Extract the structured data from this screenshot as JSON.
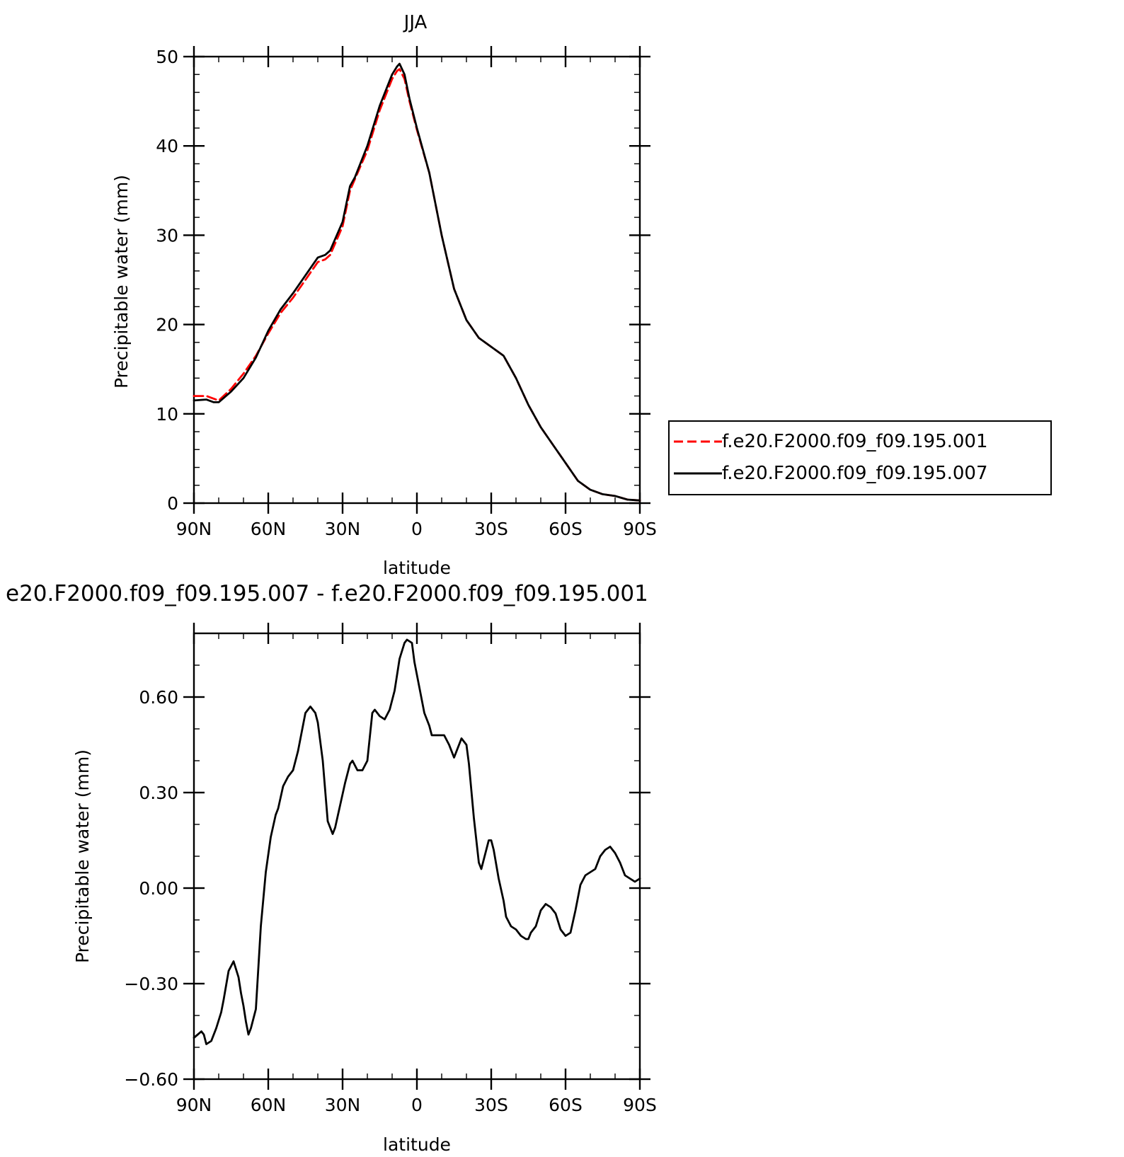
{
  "chart_data": [
    {
      "type": "line",
      "title": "JJA",
      "xlabel": "latitude",
      "ylabel": "Precipitable water (mm)",
      "xlim": [
        90,
        -90
      ],
      "ylim": [
        0,
        50
      ],
      "yticks": [
        0,
        10,
        20,
        30,
        40,
        50
      ],
      "x_tick_labels": [
        "90N",
        "60N",
        "30N",
        "0",
        "30S",
        "60S",
        "90S"
      ],
      "y_tick_labels": [
        "0",
        "10",
        "20",
        "30",
        "40",
        "50"
      ],
      "legend_placement": "right of plot",
      "series": [
        {
          "name": "f.e20.F2000.f09_f09.195.001",
          "color": "#ff0000",
          "dash": "dashed",
          "x": [
            90,
            85,
            80,
            75,
            70,
            65,
            60,
            55,
            50,
            45,
            40,
            37,
            35,
            30,
            27,
            25,
            20,
            15,
            10,
            8,
            7,
            5,
            3,
            0,
            -5,
            -10,
            -15,
            -20,
            -25,
            -30,
            -35,
            -40,
            -45,
            -50,
            -55,
            -60,
            -65,
            -70,
            -75,
            -80,
            -85,
            -90
          ],
          "y": [
            12.0,
            12.0,
            11.5,
            12.8,
            14.5,
            16.5,
            19.0,
            21.3,
            23.0,
            25.0,
            27.0,
            27.3,
            27.8,
            31.0,
            35.0,
            36.3,
            39.5,
            44.0,
            47.5,
            48.4,
            48.6,
            47.5,
            45.0,
            41.8,
            37.0,
            30.0,
            24.0,
            20.5,
            18.5,
            17.5,
            16.5,
            14.0,
            11.0,
            8.5,
            6.5,
            4.5,
            2.5,
            1.5,
            1.0,
            0.8,
            0.4,
            0.3
          ]
        },
        {
          "name": "f.e20.F2000.f09_f09.195.007",
          "color": "#000000",
          "dash": "solid",
          "x": [
            90,
            85,
            82,
            80,
            75,
            70,
            65,
            60,
            55,
            50,
            45,
            40,
            37,
            35,
            30,
            27,
            25,
            20,
            15,
            10,
            8,
            7,
            5,
            3,
            0,
            -5,
            -10,
            -15,
            -20,
            -25,
            -30,
            -35,
            -40,
            -45,
            -50,
            -55,
            -60,
            -65,
            -70,
            -75,
            -80,
            -85,
            -90
          ],
          "y": [
            11.5,
            11.6,
            11.3,
            11.3,
            12.5,
            14.0,
            16.3,
            19.3,
            21.7,
            23.5,
            25.5,
            27.5,
            27.8,
            28.3,
            31.5,
            35.5,
            36.5,
            40.0,
            44.5,
            48.0,
            48.9,
            49.2,
            48.0,
            45.3,
            42.0,
            37.0,
            30.0,
            24.0,
            20.5,
            18.5,
            17.5,
            16.5,
            14.0,
            11.0,
            8.5,
            6.5,
            4.5,
            2.5,
            1.5,
            1.0,
            0.8,
            0.4,
            0.3
          ]
        }
      ]
    },
    {
      "type": "line",
      "title": "e20.F2000.f09_f09.195.007 - f.e20.F2000.f09_f09.195.001",
      "xlabel": "latitude",
      "ylabel": "Precipitable water (mm)",
      "xlim": [
        90,
        -90
      ],
      "ylim": [
        -0.6,
        0.8
      ],
      "yticks": [
        -0.6,
        -0.3,
        0.0,
        0.3,
        0.6
      ],
      "x_tick_labels": [
        "90N",
        "60N",
        "30N",
        "0",
        "30S",
        "60S",
        "90S"
      ],
      "y_tick_labels": [
        "−0.60",
        "−0.30",
        "0.00",
        "0.30",
        "0.60"
      ],
      "series": [
        {
          "color": "#000000",
          "dash": "solid",
          "x": [
            90,
            88.5,
            87,
            86,
            85,
            83,
            81,
            79,
            78,
            76,
            74,
            72,
            71,
            70,
            69,
            68,
            67,
            65,
            63,
            61,
            59,
            57,
            56,
            54,
            52,
            50,
            48,
            47,
            45,
            43,
            41,
            40,
            38,
            36,
            34,
            33,
            31,
            29,
            27,
            26,
            24,
            22,
            20,
            18,
            17,
            15,
            13,
            11,
            9,
            7,
            5,
            4,
            2,
            1,
            -1,
            -3,
            -5,
            -6,
            -8,
            -9,
            -11,
            -13,
            -15,
            -16,
            -18,
            -20,
            -21,
            -23,
            -25,
            -26,
            -27,
            -29,
            -30,
            -31,
            -33,
            -35,
            -36,
            -38,
            -40,
            -42,
            -44,
            -45,
            -46,
            -48,
            -50,
            -52,
            -54,
            -56,
            -58,
            -60,
            -62,
            -64,
            -66,
            -68,
            -70,
            -72,
            -74,
            -76,
            -78,
            -80,
            -82,
            -84,
            -86,
            -88,
            -90
          ],
          "y": [
            -0.47,
            -0.46,
            -0.45,
            -0.46,
            -0.49,
            -0.48,
            -0.44,
            -0.39,
            -0.35,
            -0.26,
            -0.23,
            -0.28,
            -0.33,
            -0.37,
            -0.42,
            -0.46,
            -0.44,
            -0.38,
            -0.12,
            0.05,
            0.16,
            0.23,
            0.25,
            0.32,
            0.35,
            0.37,
            0.43,
            0.47,
            0.55,
            0.57,
            0.55,
            0.52,
            0.4,
            0.21,
            0.17,
            0.19,
            0.26,
            0.33,
            0.39,
            0.4,
            0.37,
            0.37,
            0.4,
            0.55,
            0.56,
            0.54,
            0.53,
            0.56,
            0.62,
            0.72,
            0.77,
            0.78,
            0.77,
            0.71,
            0.63,
            0.55,
            0.51,
            0.48,
            0.48,
            0.48,
            0.48,
            0.45,
            0.41,
            0.43,
            0.47,
            0.45,
            0.39,
            0.22,
            0.08,
            0.06,
            0.09,
            0.15,
            0.15,
            0.12,
            0.03,
            -0.04,
            -0.09,
            -0.12,
            -0.13,
            -0.15,
            -0.16,
            -0.16,
            -0.14,
            -0.12,
            -0.07,
            -0.05,
            -0.06,
            -0.08,
            -0.13,
            -0.15,
            -0.14,
            -0.07,
            0.01,
            0.04,
            0.05,
            0.06,
            0.1,
            0.12,
            0.13,
            0.11,
            0.08,
            0.04,
            0.03,
            0.02,
            0.03
          ]
        }
      ]
    }
  ]
}
